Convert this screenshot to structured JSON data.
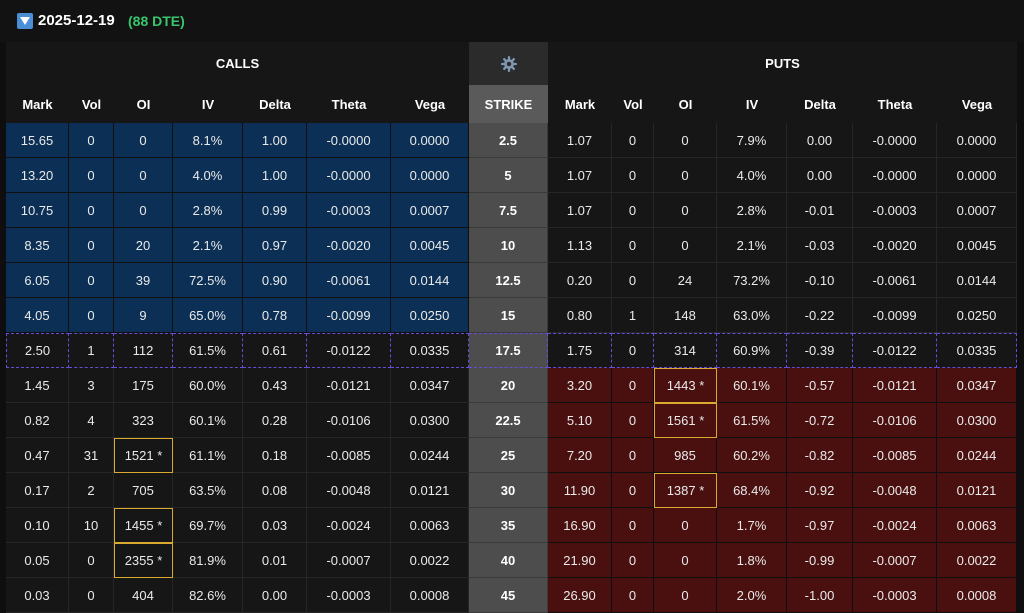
{
  "expiry": {
    "date": "2025-12-19",
    "dte": "(88 DTE)"
  },
  "headers": {
    "calls": "CALLS",
    "puts": "PUTS",
    "strike": "STRIKE"
  },
  "columns": {
    "calls": [
      "Mark",
      "Vol",
      "OI",
      "IV",
      "Delta",
      "Theta",
      "Vega"
    ],
    "puts": [
      "Mark",
      "Vol",
      "OI",
      "IV",
      "Delta",
      "Theta",
      "Vega"
    ]
  },
  "colors": {
    "itm_call": "#0b2f55",
    "itm_put": "#4a0f0f",
    "dte": "#39c56e",
    "highlight": "#d9a930",
    "atm_border": "#6a4bd4"
  },
  "rows": [
    {
      "strike": "2.5",
      "zone": "call-itm",
      "call": [
        "15.65",
        "0",
        "0",
        "8.1%",
        "1.00",
        "-0.0000",
        "0.0000"
      ],
      "put": [
        "1.07",
        "0",
        "0",
        "7.9%",
        "0.00",
        "-0.0000",
        "0.0000"
      ],
      "call_oi_hl": false,
      "put_oi_hl": false
    },
    {
      "strike": "5",
      "zone": "call-itm",
      "call": [
        "13.20",
        "0",
        "0",
        "4.0%",
        "1.00",
        "-0.0000",
        "0.0000"
      ],
      "put": [
        "1.07",
        "0",
        "0",
        "4.0%",
        "0.00",
        "-0.0000",
        "0.0000"
      ],
      "call_oi_hl": false,
      "put_oi_hl": false
    },
    {
      "strike": "7.5",
      "zone": "call-itm",
      "call": [
        "10.75",
        "0",
        "0",
        "2.8%",
        "0.99",
        "-0.0003",
        "0.0007"
      ],
      "put": [
        "1.07",
        "0",
        "0",
        "2.8%",
        "-0.01",
        "-0.0003",
        "0.0007"
      ],
      "call_oi_hl": false,
      "put_oi_hl": false
    },
    {
      "strike": "10",
      "zone": "call-itm",
      "call": [
        "8.35",
        "0",
        "20",
        "2.1%",
        "0.97",
        "-0.0020",
        "0.0045"
      ],
      "put": [
        "1.13",
        "0",
        "0",
        "2.1%",
        "-0.03",
        "-0.0020",
        "0.0045"
      ],
      "call_oi_hl": false,
      "put_oi_hl": false
    },
    {
      "strike": "12.5",
      "zone": "call-itm",
      "call": [
        "6.05",
        "0",
        "39",
        "72.5%",
        "0.90",
        "-0.0061",
        "0.0144"
      ],
      "put": [
        "0.20",
        "0",
        "24",
        "73.2%",
        "-0.10",
        "-0.0061",
        "0.0144"
      ],
      "call_oi_hl": false,
      "put_oi_hl": false
    },
    {
      "strike": "15",
      "zone": "call-itm",
      "call": [
        "4.05",
        "0",
        "9",
        "65.0%",
        "0.78",
        "-0.0099",
        "0.0250"
      ],
      "put": [
        "0.80",
        "1",
        "148",
        "63.0%",
        "-0.22",
        "-0.0099",
        "0.0250"
      ],
      "call_oi_hl": false,
      "put_oi_hl": false
    },
    {
      "strike": "17.5",
      "zone": "atm",
      "call": [
        "2.50",
        "1",
        "112",
        "61.5%",
        "0.61",
        "-0.0122",
        "0.0335"
      ],
      "put": [
        "1.75",
        "0",
        "314",
        "60.9%",
        "-0.39",
        "-0.0122",
        "0.0335"
      ],
      "call_oi_hl": false,
      "put_oi_hl": false
    },
    {
      "strike": "20",
      "zone": "put-itm",
      "call": [
        "1.45",
        "3",
        "175",
        "60.0%",
        "0.43",
        "-0.0121",
        "0.0347"
      ],
      "put": [
        "3.20",
        "0",
        "1443 *",
        "60.1%",
        "-0.57",
        "-0.0121",
        "0.0347"
      ],
      "call_oi_hl": false,
      "put_oi_hl": true
    },
    {
      "strike": "22.5",
      "zone": "put-itm",
      "call": [
        "0.82",
        "4",
        "323",
        "60.1%",
        "0.28",
        "-0.0106",
        "0.0300"
      ],
      "put": [
        "5.10",
        "0",
        "1561 *",
        "61.5%",
        "-0.72",
        "-0.0106",
        "0.0300"
      ],
      "call_oi_hl": false,
      "put_oi_hl": true
    },
    {
      "strike": "25",
      "zone": "put-itm",
      "call": [
        "0.47",
        "31",
        "1521 *",
        "61.1%",
        "0.18",
        "-0.0085",
        "0.0244"
      ],
      "put": [
        "7.20",
        "0",
        "985",
        "60.2%",
        "-0.82",
        "-0.0085",
        "0.0244"
      ],
      "call_oi_hl": true,
      "put_oi_hl": false
    },
    {
      "strike": "30",
      "zone": "put-itm",
      "call": [
        "0.17",
        "2",
        "705",
        "63.5%",
        "0.08",
        "-0.0048",
        "0.0121"
      ],
      "put": [
        "11.90",
        "0",
        "1387 *",
        "68.4%",
        "-0.92",
        "-0.0048",
        "0.0121"
      ],
      "call_oi_hl": false,
      "put_oi_hl": true
    },
    {
      "strike": "35",
      "zone": "put-itm",
      "call": [
        "0.10",
        "10",
        "1455 *",
        "69.7%",
        "0.03",
        "-0.0024",
        "0.0063"
      ],
      "put": [
        "16.90",
        "0",
        "0",
        "1.7%",
        "-0.97",
        "-0.0024",
        "0.0063"
      ],
      "call_oi_hl": true,
      "put_oi_hl": false
    },
    {
      "strike": "40",
      "zone": "put-itm",
      "call": [
        "0.05",
        "0",
        "2355 *",
        "81.9%",
        "0.01",
        "-0.0007",
        "0.0022"
      ],
      "put": [
        "21.90",
        "0",
        "0",
        "1.8%",
        "-0.99",
        "-0.0007",
        "0.0022"
      ],
      "call_oi_hl": true,
      "put_oi_hl": false
    },
    {
      "strike": "45",
      "zone": "put-itm",
      "call": [
        "0.03",
        "0",
        "404",
        "82.6%",
        "0.00",
        "-0.0003",
        "0.0008"
      ],
      "put": [
        "26.90",
        "0",
        "0",
        "2.0%",
        "-1.00",
        "-0.0003",
        "0.0008"
      ],
      "call_oi_hl": false,
      "put_oi_hl": false
    }
  ]
}
